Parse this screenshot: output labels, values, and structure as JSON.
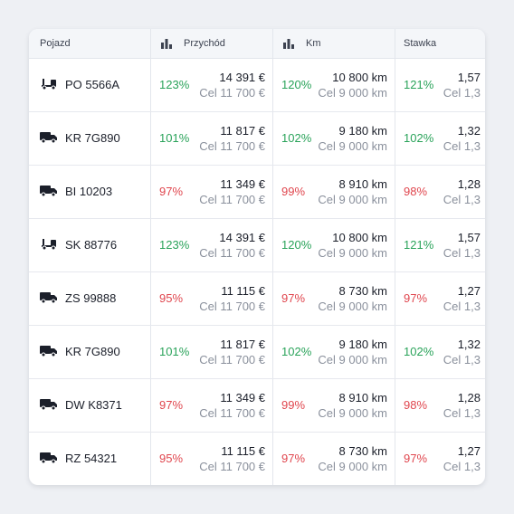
{
  "header": {
    "vehicle": "Pojazd",
    "revenue": "Przychód",
    "km": "Km",
    "rate": "Stawka"
  },
  "rows": [
    {
      "vehicle": "PO 5566A",
      "revenue": {
        "pct": "123%",
        "value": "14 391 €",
        "target": "Cel 11 700 €"
      },
      "km": {
        "pct": "120%",
        "value": "10 800 km",
        "target": "Cel 9 000 km"
      },
      "rate": {
        "pct": "121%",
        "value": "1,57",
        "target": "Cel 1,3"
      }
    },
    {
      "vehicle": "KR 7G890",
      "revenue": {
        "pct": "101%",
        "value": "11 817 €",
        "target": "Cel 11 700 €"
      },
      "km": {
        "pct": "102%",
        "value": "9 180 km",
        "target": "Cel 9 000 km"
      },
      "rate": {
        "pct": "102%",
        "value": "1,32",
        "target": "Cel 1,3"
      }
    },
    {
      "vehicle": "BI 10203",
      "revenue": {
        "pct": "97%",
        "value": "11 349 €",
        "target": "Cel 11 700 €"
      },
      "km": {
        "pct": "99%",
        "value": "8 910 km",
        "target": "Cel 9 000 km"
      },
      "rate": {
        "pct": "98%",
        "value": "1,28",
        "target": "Cel 1,3"
      }
    },
    {
      "vehicle": "SK 88776",
      "revenue": {
        "pct": "123%",
        "value": "14 391 €",
        "target": "Cel 11 700 €"
      },
      "km": {
        "pct": "120%",
        "value": "10 800 km",
        "target": "Cel 9 000 km"
      },
      "rate": {
        "pct": "121%",
        "value": "1,57",
        "target": "Cel 1,3"
      }
    },
    {
      "vehicle": "ZS 99888",
      "revenue": {
        "pct": "95%",
        "value": "11 115 €",
        "target": "Cel 11 700 €"
      },
      "km": {
        "pct": "97%",
        "value": "8 730 km",
        "target": "Cel 9 000 km"
      },
      "rate": {
        "pct": "97%",
        "value": "1,27",
        "target": "Cel 1,3"
      }
    },
    {
      "vehicle": "KR 7G890",
      "revenue": {
        "pct": "101%",
        "value": "11 817 €",
        "target": "Cel 11 700 €"
      },
      "km": {
        "pct": "102%",
        "value": "9 180 km",
        "target": "Cel 9 000 km"
      },
      "rate": {
        "pct": "102%",
        "value": "1,32",
        "target": "Cel 1,3"
      }
    },
    {
      "vehicle": "DW K8371",
      "revenue": {
        "pct": "97%",
        "value": "11 349 €",
        "target": "Cel 11 700 €"
      },
      "km": {
        "pct": "99%",
        "value": "8 910 km",
        "target": "Cel 9 000 km"
      },
      "rate": {
        "pct": "98%",
        "value": "1,28",
        "target": "Cel 1,3"
      }
    },
    {
      "vehicle": "RZ 54321",
      "revenue": {
        "pct": "95%",
        "value": "11 115 €",
        "target": "Cel 11 700 €"
      },
      "km": {
        "pct": "97%",
        "value": "8 730 km",
        "target": "Cel 9 000 km"
      },
      "rate": {
        "pct": "97%",
        "value": "1,27",
        "target": "Cel 1,3"
      }
    }
  ]
}
